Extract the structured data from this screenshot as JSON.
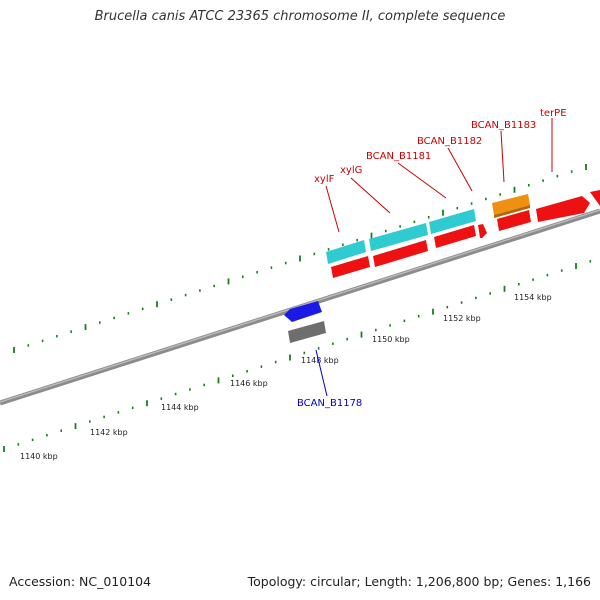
{
  "title": "Brucella canis ATCC 23365 chromosome II, complete sequence",
  "footer": {
    "accession": "Accession: NC_010104",
    "stats": "Topology: circular; Length: 1,206,800 bp; Genes: 1,166"
  },
  "colors": {
    "backbone": "#8c8c8c",
    "tick": "#1a7f1a",
    "feature_red": "#ee1111",
    "feature_cyan": "#2ecbd0",
    "feature_orange": "#f09010",
    "feature_blue": "#1a1ae6",
    "feature_gray": "#6e6e6e",
    "label_red": "#cc0000",
    "label_blue": "#0000cc"
  },
  "ruler": {
    "labels": [
      "1140 kbp",
      "1142 kbp",
      "1144 kbp",
      "1146 kbp",
      "1148 kbp",
      "1150 kbp",
      "1152 kbp",
      "1154 kbp"
    ]
  },
  "genes": [
    {
      "name": "xylF",
      "color": "label_red"
    },
    {
      "name": "xylG",
      "color": "label_red"
    },
    {
      "name": "BCAN_B1181",
      "color": "label_red"
    },
    {
      "name": "BCAN_B1182",
      "color": "label_red"
    },
    {
      "name": "BCAN_B1183",
      "color": "label_red"
    },
    {
      "name": "terPE",
      "color": "label_red"
    },
    {
      "name": "BCAN_B1178",
      "color": "label_blue"
    }
  ]
}
